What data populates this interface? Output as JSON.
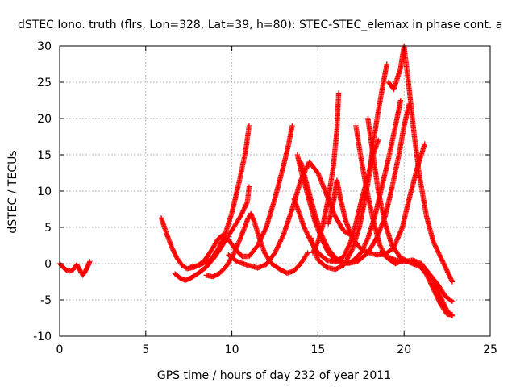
{
  "chart_data": {
    "type": "scatter",
    "title": "dSTEC Iono. truth (flrs, Lon=328, Lat=39, h=80): STEC-STEC_elemax in phase cont. a",
    "xlabel": "GPS time / hours of day 232 of year 2011",
    "ylabel": "dSTEC  / TECUs",
    "xlim": [
      0,
      25
    ],
    "ylim": [
      -10,
      30
    ],
    "xticks": [
      "0",
      "5",
      "10",
      "15",
      "20",
      "25"
    ],
    "yticks": [
      "-10",
      "-5",
      "0",
      "5",
      "10",
      "15",
      "20",
      "25",
      "30"
    ],
    "xtick_values": [
      0,
      5,
      10,
      15,
      20,
      25
    ],
    "ytick_values": [
      -10,
      -5,
      0,
      5,
      10,
      15,
      20,
      25,
      30
    ],
    "grid": true,
    "marker": "plus",
    "color": "#ff0000",
    "series": [
      {
        "points": [
          [
            0.0,
            0.0
          ],
          [
            0.2,
            -0.5
          ],
          [
            0.4,
            -0.9
          ],
          [
            0.6,
            -1.0
          ],
          [
            0.8,
            -0.8
          ],
          [
            1.0,
            -0.1
          ]
        ]
      },
      {
        "points": [
          [
            1.0,
            -0.2
          ],
          [
            1.2,
            -1.0
          ],
          [
            1.35,
            -1.6
          ],
          [
            1.5,
            -1.0
          ],
          [
            1.65,
            -0.3
          ],
          [
            1.75,
            0.3
          ]
        ]
      },
      {
        "points": [
          [
            5.9,
            6.3
          ],
          [
            6.2,
            4.2
          ],
          [
            6.5,
            2.3
          ],
          [
            6.8,
            0.8
          ],
          [
            7.1,
            -0.2
          ],
          [
            7.4,
            -0.7
          ],
          [
            7.8,
            -0.5
          ],
          [
            8.3,
            0.0
          ],
          [
            8.8,
            0.6
          ],
          [
            9.2,
            2.0
          ],
          [
            9.6,
            4.0
          ],
          [
            10.0,
            7.0
          ],
          [
            10.4,
            11.0
          ],
          [
            10.8,
            15.5
          ],
          [
            11.0,
            19.0
          ]
        ]
      },
      {
        "points": [
          [
            6.7,
            -1.4
          ],
          [
            7.0,
            -2.0
          ],
          [
            7.3,
            -2.3
          ],
          [
            7.6,
            -2.0
          ],
          [
            8.0,
            -1.4
          ],
          [
            8.5,
            -0.5
          ],
          [
            9.0,
            0.9
          ],
          [
            9.5,
            2.7
          ],
          [
            10.0,
            4.6
          ],
          [
            10.5,
            6.5
          ],
          [
            10.9,
            8.5
          ],
          [
            11.0,
            10.6
          ]
        ]
      },
      {
        "points": [
          [
            7.6,
            -0.5
          ],
          [
            8.0,
            -0.3
          ],
          [
            8.4,
            0.4
          ],
          [
            8.8,
            1.8
          ],
          [
            9.2,
            3.4
          ],
          [
            9.5,
            4.0
          ],
          [
            9.8,
            3.3
          ],
          [
            10.2,
            2.0
          ],
          [
            10.6,
            1.0
          ],
          [
            11.0,
            1.0
          ],
          [
            11.5,
            2.5
          ],
          [
            12.0,
            5.0
          ],
          [
            12.5,
            9.0
          ],
          [
            13.0,
            13.5
          ],
          [
            13.3,
            16.5
          ],
          [
            13.5,
            19.0
          ]
        ]
      },
      {
        "points": [
          [
            8.5,
            -1.6
          ],
          [
            8.9,
            -1.8
          ],
          [
            9.3,
            -1.3
          ],
          [
            9.7,
            -0.3
          ],
          [
            10.1,
            1.3
          ],
          [
            10.5,
            3.5
          ],
          [
            10.9,
            6.0
          ],
          [
            11.1,
            6.9
          ],
          [
            11.3,
            5.8
          ],
          [
            11.6,
            3.5
          ],
          [
            11.9,
            1.5
          ],
          [
            12.3,
            0.0
          ],
          [
            12.8,
            -0.8
          ],
          [
            13.2,
            -1.3
          ],
          [
            13.6,
            -1.0
          ],
          [
            14.0,
            0.0
          ],
          [
            14.4,
            1.5
          ]
        ]
      },
      {
        "points": [
          [
            9.8,
            1.2
          ],
          [
            10.3,
            0.3
          ],
          [
            10.9,
            -0.2
          ],
          [
            11.5,
            -0.6
          ],
          [
            12.0,
            -0.1
          ],
          [
            12.5,
            1.5
          ],
          [
            13.0,
            4.0
          ],
          [
            13.5,
            7.5
          ],
          [
            14.0,
            11.5
          ],
          [
            14.5,
            14.0
          ],
          [
            15.0,
            12.5
          ],
          [
            15.5,
            9.5
          ],
          [
            16.0,
            6.5
          ],
          [
            16.5,
            4.5
          ],
          [
            17.0,
            3.8
          ]
        ]
      },
      {
        "points": [
          [
            13.6,
            9.0
          ],
          [
            13.9,
            7.0
          ],
          [
            14.2,
            5.0
          ],
          [
            14.6,
            3.0
          ],
          [
            15.0,
            1.5
          ],
          [
            15.5,
            0.5
          ],
          [
            16.0,
            0.2
          ],
          [
            16.5,
            1.0
          ],
          [
            16.9,
            3.0
          ],
          [
            17.2,
            5.5
          ],
          [
            17.5,
            8.5
          ],
          [
            17.9,
            12.0
          ],
          [
            18.2,
            15.0
          ],
          [
            18.5,
            17.0
          ]
        ]
      },
      {
        "points": [
          [
            13.8,
            15.0
          ],
          [
            14.1,
            12.0
          ],
          [
            14.4,
            9.5
          ],
          [
            14.8,
            6.0
          ],
          [
            15.2,
            3.5
          ],
          [
            15.6,
            1.5
          ],
          [
            16.0,
            0.5
          ],
          [
            16.5,
            0.0
          ],
          [
            17.0,
            0.3
          ],
          [
            17.5,
            1.5
          ],
          [
            17.9,
            3.5
          ],
          [
            18.3,
            6.5
          ],
          [
            18.7,
            10.5
          ],
          [
            19.1,
            14.5
          ],
          [
            19.5,
            19.0
          ],
          [
            19.8,
            22.5
          ]
        ]
      },
      {
        "points": [
          [
            14.0,
            14.0
          ],
          [
            14.4,
            10.5
          ],
          [
            14.8,
            7.0
          ],
          [
            15.2,
            4.0
          ],
          [
            15.6,
            2.0
          ],
          [
            16.1,
            0.6
          ],
          [
            16.7,
            0.0
          ],
          [
            17.3,
            0.3
          ],
          [
            17.9,
            1.5
          ],
          [
            18.4,
            3.5
          ],
          [
            18.9,
            6.5
          ],
          [
            19.3,
            10.5
          ],
          [
            19.7,
            15.0
          ],
          [
            20.0,
            19.0
          ],
          [
            20.3,
            22.0
          ]
        ]
      },
      {
        "points": [
          [
            14.7,
            1.5
          ],
          [
            15.0,
            3.0
          ],
          [
            15.3,
            5.5
          ],
          [
            15.6,
            9.0
          ],
          [
            15.9,
            13.5
          ],
          [
            16.1,
            18.5
          ],
          [
            16.2,
            23.5
          ]
        ]
      },
      {
        "points": [
          [
            14.6,
            3.5
          ],
          [
            15.0,
            0.5
          ],
          [
            15.5,
            -0.5
          ],
          [
            16.0,
            -0.8
          ],
          [
            16.5,
            -0.2
          ],
          [
            17.0,
            2.0
          ],
          [
            17.4,
            5.0
          ],
          [
            17.7,
            8.5
          ],
          [
            18.0,
            12.5
          ],
          [
            18.2,
            16.5
          ],
          [
            18.5,
            21.0
          ],
          [
            18.8,
            25.0
          ],
          [
            19.0,
            27.5
          ]
        ]
      },
      {
        "points": [
          [
            15.6,
            5.5
          ],
          [
            15.9,
            8.5
          ],
          [
            16.1,
            11.5
          ],
          [
            16.3,
            9.0
          ],
          [
            16.6,
            6.0
          ],
          [
            17.0,
            3.5
          ],
          [
            17.5,
            2.0
          ],
          [
            18.0,
            1.5
          ],
          [
            18.4,
            1.2
          ],
          [
            18.9,
            1.3
          ],
          [
            19.4,
            2.2
          ],
          [
            19.9,
            5.0
          ],
          [
            20.3,
            9.0
          ],
          [
            20.8,
            13.5
          ],
          [
            21.2,
            16.5
          ]
        ]
      },
      {
        "points": [
          [
            17.2,
            19.0
          ],
          [
            17.5,
            14.5
          ],
          [
            17.8,
            10.5
          ],
          [
            18.2,
            6.0
          ],
          [
            18.6,
            2.5
          ],
          [
            19.0,
            0.8
          ],
          [
            19.5,
            0.0
          ],
          [
            20.0,
            0.5
          ],
          [
            20.5,
            0.0
          ],
          [
            21.0,
            -0.5
          ],
          [
            21.5,
            -1.5
          ],
          [
            22.0,
            -3.0
          ],
          [
            22.4,
            -4.5
          ],
          [
            22.8,
            -5.2
          ]
        ]
      },
      {
        "points": [
          [
            17.9,
            20.0
          ],
          [
            18.2,
            15.0
          ],
          [
            18.5,
            10.0
          ],
          [
            18.9,
            5.5
          ],
          [
            19.3,
            2.5
          ],
          [
            19.8,
            0.8
          ],
          [
            20.3,
            0.2
          ],
          [
            20.8,
            0.0
          ],
          [
            21.3,
            -1.5
          ],
          [
            21.7,
            -3.5
          ],
          [
            22.1,
            -5.5
          ],
          [
            22.5,
            -7.0
          ],
          [
            22.8,
            -7.0
          ]
        ]
      },
      {
        "points": [
          [
            19.1,
            25.0
          ],
          [
            19.4,
            24.0
          ],
          [
            19.8,
            27.0
          ],
          [
            20.0,
            30.0
          ],
          [
            20.3,
            24.0
          ],
          [
            20.6,
            17.5
          ],
          [
            20.9,
            12.0
          ],
          [
            21.3,
            6.5
          ],
          [
            21.7,
            3.0
          ],
          [
            22.1,
            1.0
          ],
          [
            22.5,
            -1.0
          ],
          [
            22.8,
            -2.5
          ]
        ]
      },
      {
        "points": [
          [
            18.6,
            1.5
          ],
          [
            19.0,
            1.0
          ],
          [
            19.5,
            0.5
          ],
          [
            20.0,
            0.3
          ],
          [
            20.5,
            0.5
          ],
          [
            21.0,
            0.0
          ],
          [
            21.5,
            -1.5
          ],
          [
            22.0,
            -4.0
          ],
          [
            22.5,
            -6.5
          ],
          [
            22.8,
            -7.2
          ]
        ]
      }
    ]
  }
}
